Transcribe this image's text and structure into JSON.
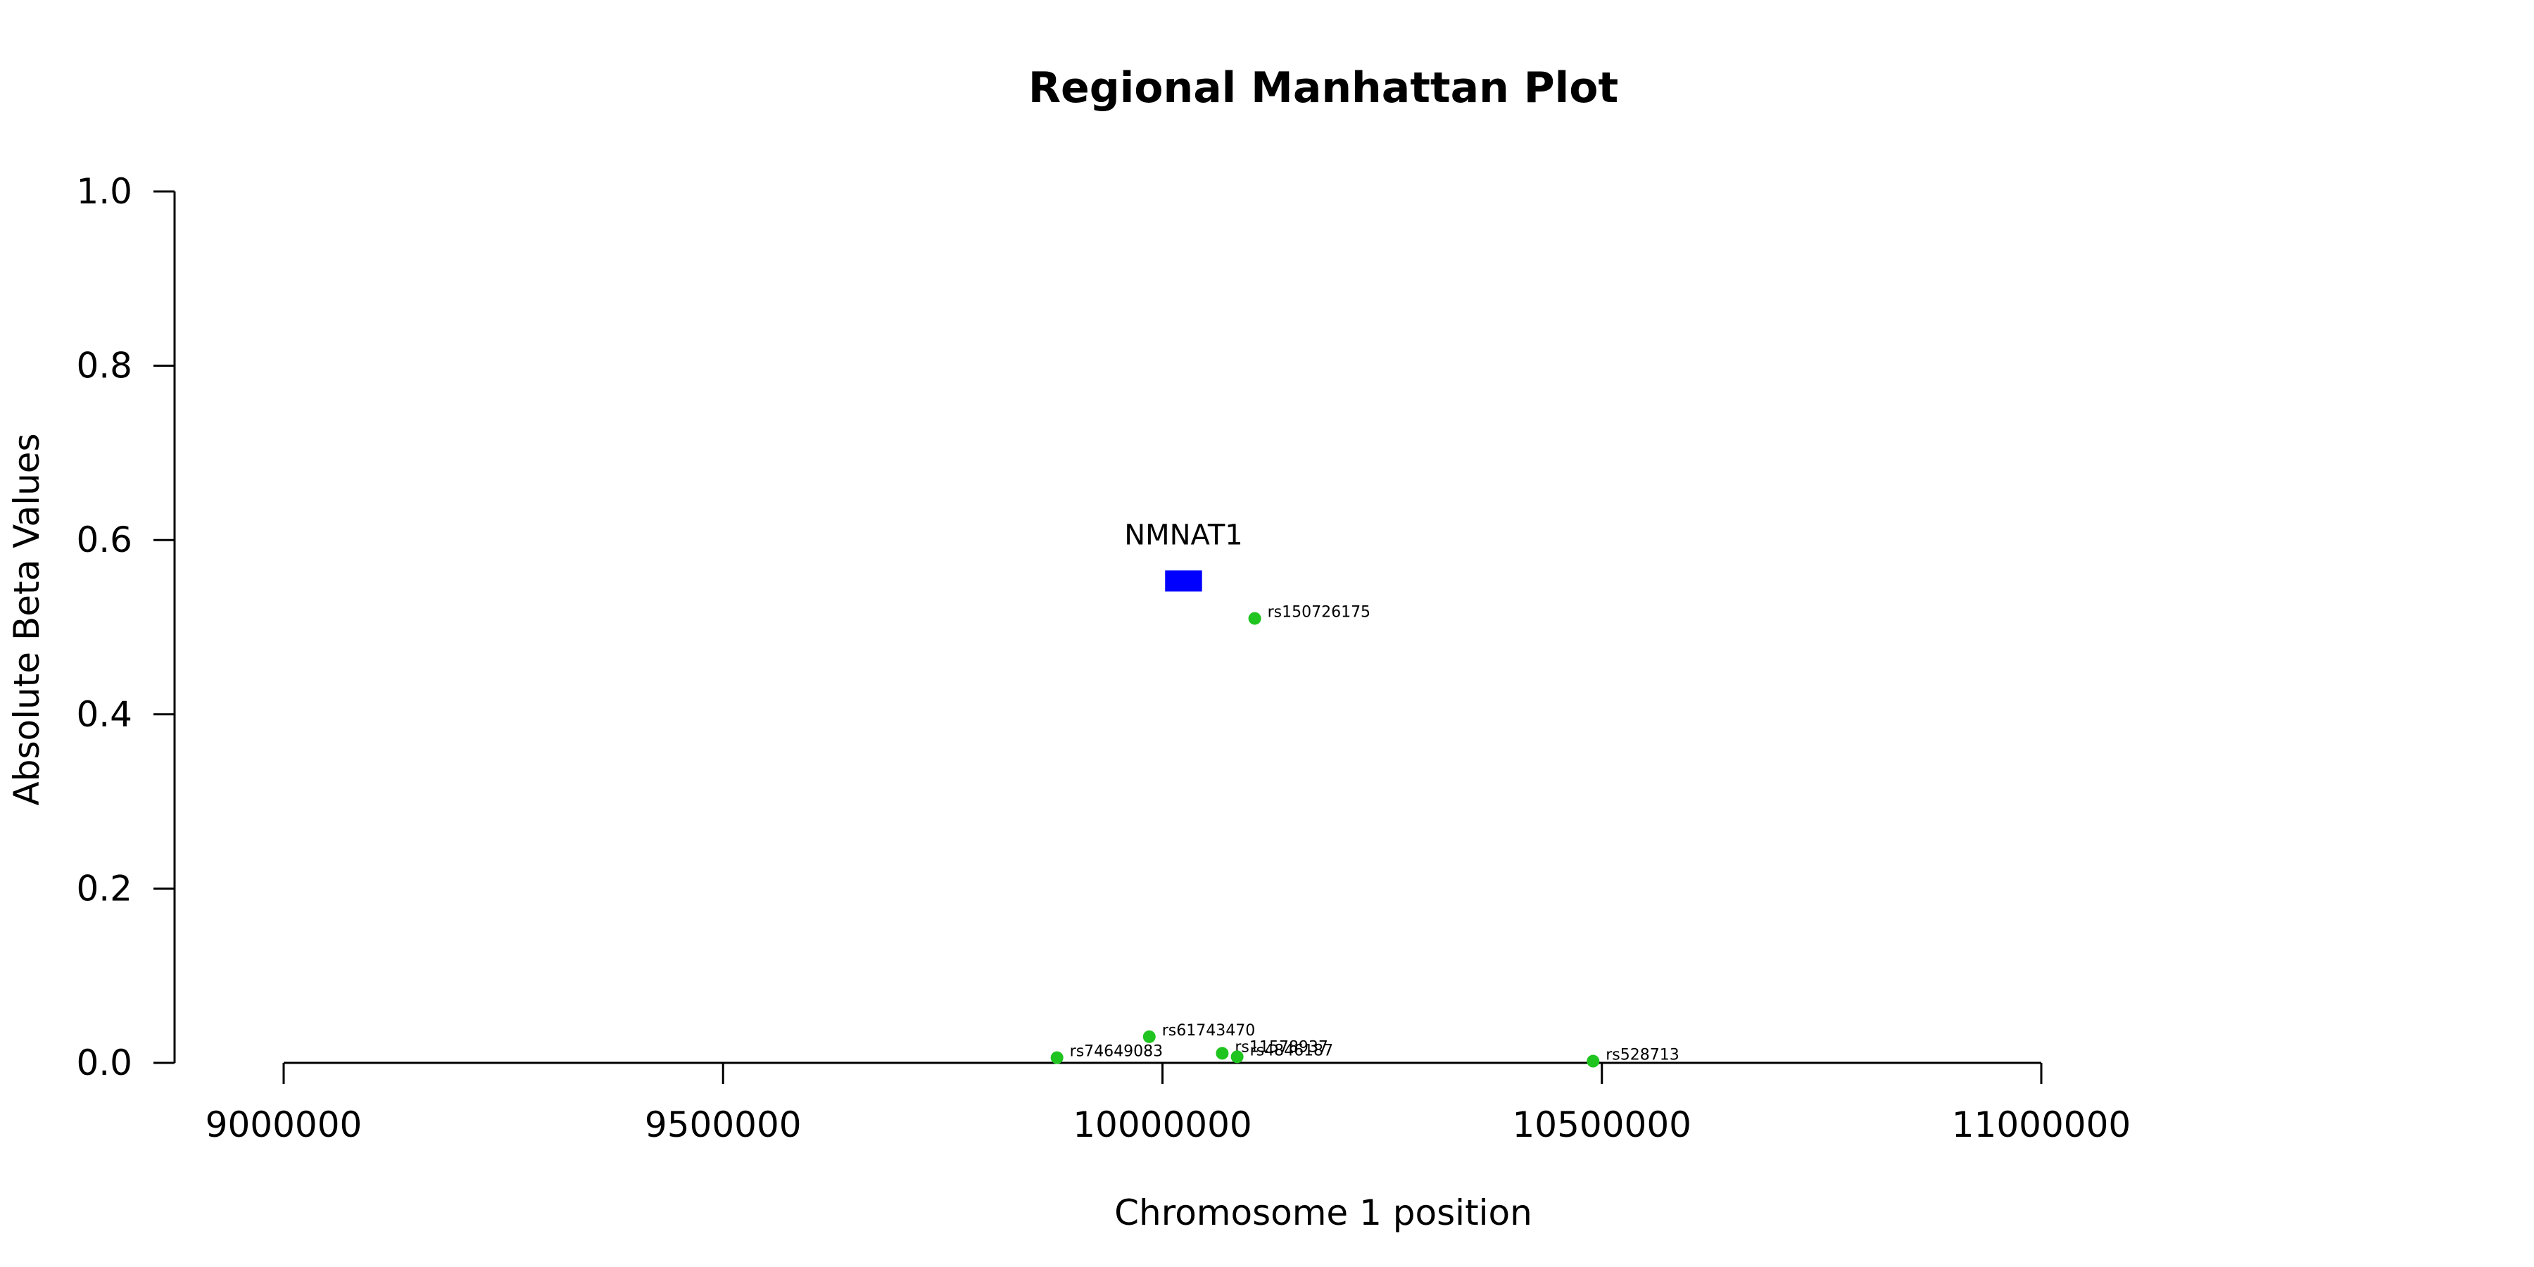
{
  "chart_data": {
    "type": "scatter",
    "title": "Regional Manhattan Plot",
    "xlabel": "Chromosome 1 position",
    "ylabel": "Absolute Beta Values",
    "xlim": [
      9000000,
      11000000
    ],
    "ylim": [
      0,
      1
    ],
    "x_ticks": [
      9000000,
      9500000,
      10000000,
      10500000,
      11000000
    ],
    "x_tick_labels": [
      "9000000",
      "9500000",
      "10000000",
      "10500000",
      "11000000"
    ],
    "y_ticks": [
      0,
      0.2,
      0.4,
      0.6,
      0.8,
      1.0
    ],
    "y_tick_labels": [
      "0.0",
      "0.2",
      "0.4",
      "0.6",
      "0.8",
      "1.0"
    ],
    "point_color": "#1fc41f",
    "points": [
      {
        "label": "rs150726175",
        "x": 10105000,
        "y": 0.51
      },
      {
        "label": "rs61743470",
        "x": 9985000,
        "y": 0.03
      },
      {
        "label": "rs74649083",
        "x": 9880000,
        "y": 0.006
      },
      {
        "label": "rs11578937",
        "x": 10068000,
        "y": 0.011
      },
      {
        "label": "rs4846187",
        "x": 10085000,
        "y": 0.007
      },
      {
        "label": "rs528713",
        "x": 10490000,
        "y": 0.002
      }
    ],
    "genes": [
      {
        "name": "NMNAT1",
        "start": 10003000,
        "end": 10045000,
        "y": 0.553,
        "color": "#0000ff"
      }
    ]
  }
}
